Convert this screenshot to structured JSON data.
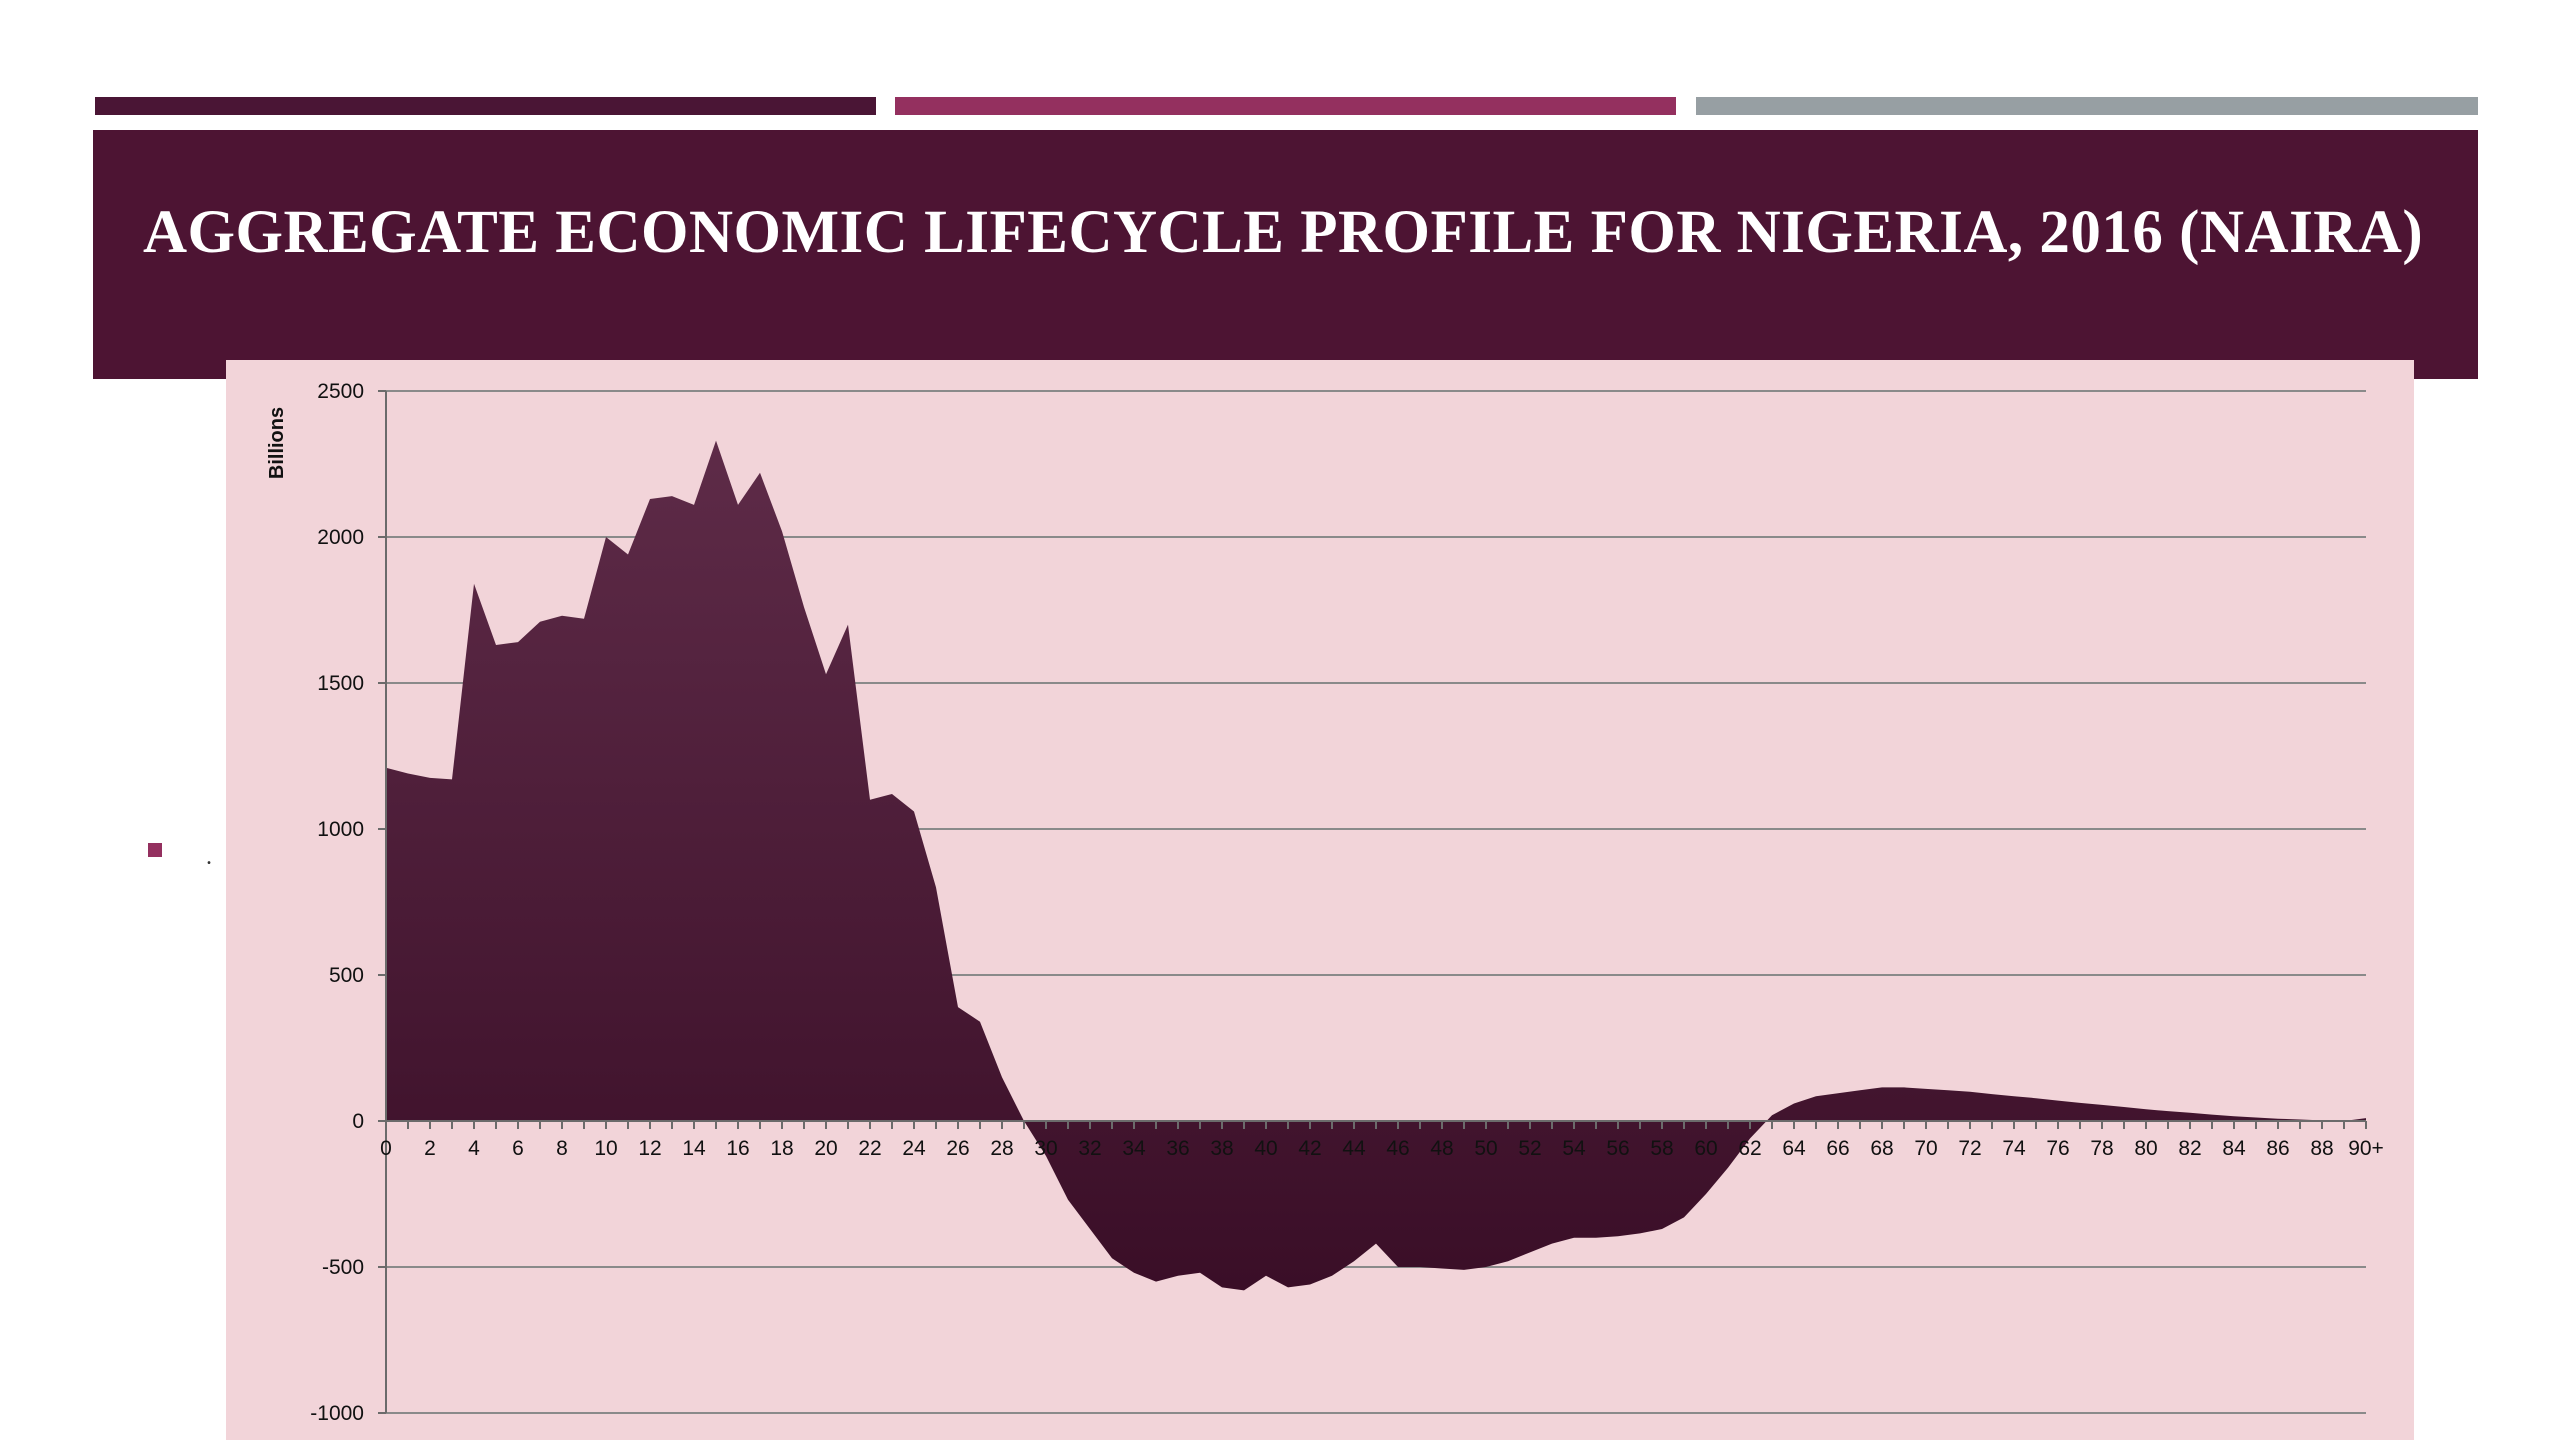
{
  "slide": {
    "title": "AGGREGATE ECONOMIC LIFECYCLE PROFILE FOR NIGERIA, 2016 (NAIRA)",
    "bullet_text": "."
  },
  "colors": {
    "title_band": "#4d1433",
    "accent_1": "#4a1535",
    "accent_2": "#94305f",
    "accent_3": "#979fa3",
    "chart_background": "#f2d4d9",
    "area_fill_top": "#5e2b48",
    "area_fill_bottom": "#3a0e27"
  },
  "chart_data": {
    "type": "area",
    "ylabel": "Billions",
    "xlabel": "",
    "ylim": [
      -1000,
      2500
    ],
    "yticks": [
      2500,
      2000,
      1500,
      1000,
      500,
      0,
      -500,
      -1000
    ],
    "grid": true,
    "x_tick_labels": [
      "0",
      "2",
      "4",
      "6",
      "8",
      "10",
      "12",
      "14",
      "16",
      "18",
      "20",
      "22",
      "24",
      "26",
      "28",
      "30",
      "32",
      "34",
      "36",
      "38",
      "40",
      "42",
      "44",
      "46",
      "48",
      "50",
      "52",
      "54",
      "56",
      "58",
      "60",
      "62",
      "64",
      "66",
      "68",
      "70",
      "72",
      "74",
      "76",
      "78",
      "80",
      "82",
      "84",
      "86",
      "88",
      "90+"
    ],
    "x": [
      0,
      1,
      2,
      3,
      4,
      5,
      6,
      7,
      8,
      9,
      10,
      11,
      12,
      13,
      14,
      15,
      16,
      17,
      18,
      19,
      20,
      21,
      22,
      23,
      24,
      25,
      26,
      27,
      28,
      29,
      30,
      31,
      32,
      33,
      34,
      35,
      36,
      37,
      38,
      39,
      40,
      41,
      42,
      43,
      44,
      45,
      46,
      47,
      48,
      49,
      50,
      51,
      52,
      53,
      54,
      55,
      56,
      57,
      58,
      59,
      60,
      61,
      62,
      63,
      64,
      65,
      66,
      67,
      68,
      69,
      70,
      71,
      72,
      73,
      74,
      75,
      76,
      77,
      78,
      79,
      80,
      81,
      82,
      83,
      84,
      85,
      86,
      87,
      88,
      89,
      90
    ],
    "values": [
      1210,
      1190,
      1175,
      1170,
      1840,
      1630,
      1640,
      1710,
      1730,
      1720,
      2000,
      1940,
      2130,
      2140,
      2110,
      2330,
      2110,
      2220,
      2020,
      1760,
      1530,
      1700,
      1100,
      1120,
      1060,
      800,
      390,
      340,
      150,
      0,
      -120,
      -270,
      -370,
      -470,
      -520,
      -550,
      -530,
      -520,
      -570,
      -580,
      -530,
      -570,
      -560,
      -530,
      -480,
      -420,
      -500,
      -500,
      -505,
      -510,
      -500,
      -480,
      -450,
      -420,
      -400,
      -400,
      -395,
      -385,
      -370,
      -330,
      -250,
      -160,
      -60,
      20,
      60,
      85,
      95,
      105,
      115,
      115,
      110,
      105,
      100,
      92,
      85,
      78,
      70,
      62,
      55,
      48,
      40,
      34,
      28,
      22,
      16,
      12,
      8,
      5,
      2,
      0,
      10
    ]
  }
}
